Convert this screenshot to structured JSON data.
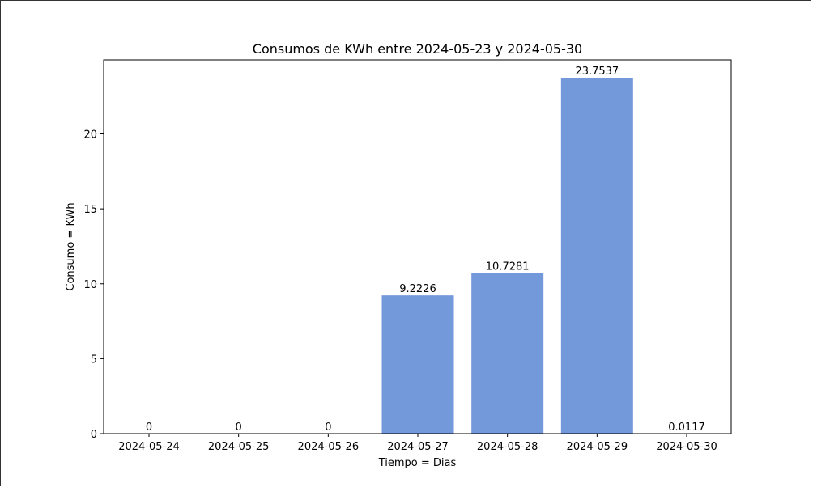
{
  "chart_data": {
    "type": "bar",
    "title": "Consumos de KWh entre 2024-05-23 y 2024-05-30",
    "xlabel": "Tiempo = Dias",
    "ylabel": "Consumo = KWh",
    "categories": [
      "2024-05-24",
      "2024-05-25",
      "2024-05-26",
      "2024-05-27",
      "2024-05-28",
      "2024-05-29",
      "2024-05-30"
    ],
    "values": [
      0,
      0,
      0,
      9.2226,
      10.7281,
      23.7537,
      0.0117
    ],
    "value_labels": [
      "0",
      "0",
      "0",
      "9.2226",
      "10.7281",
      "23.7537",
      "0.0117"
    ],
    "yticks": [
      0,
      5,
      10,
      15,
      20
    ],
    "ytick_labels": [
      "0",
      "5",
      "10",
      "15",
      "20"
    ],
    "ylim": [
      0,
      24.94
    ],
    "grid": false,
    "legend": "none",
    "bar_color": "#7499db"
  }
}
